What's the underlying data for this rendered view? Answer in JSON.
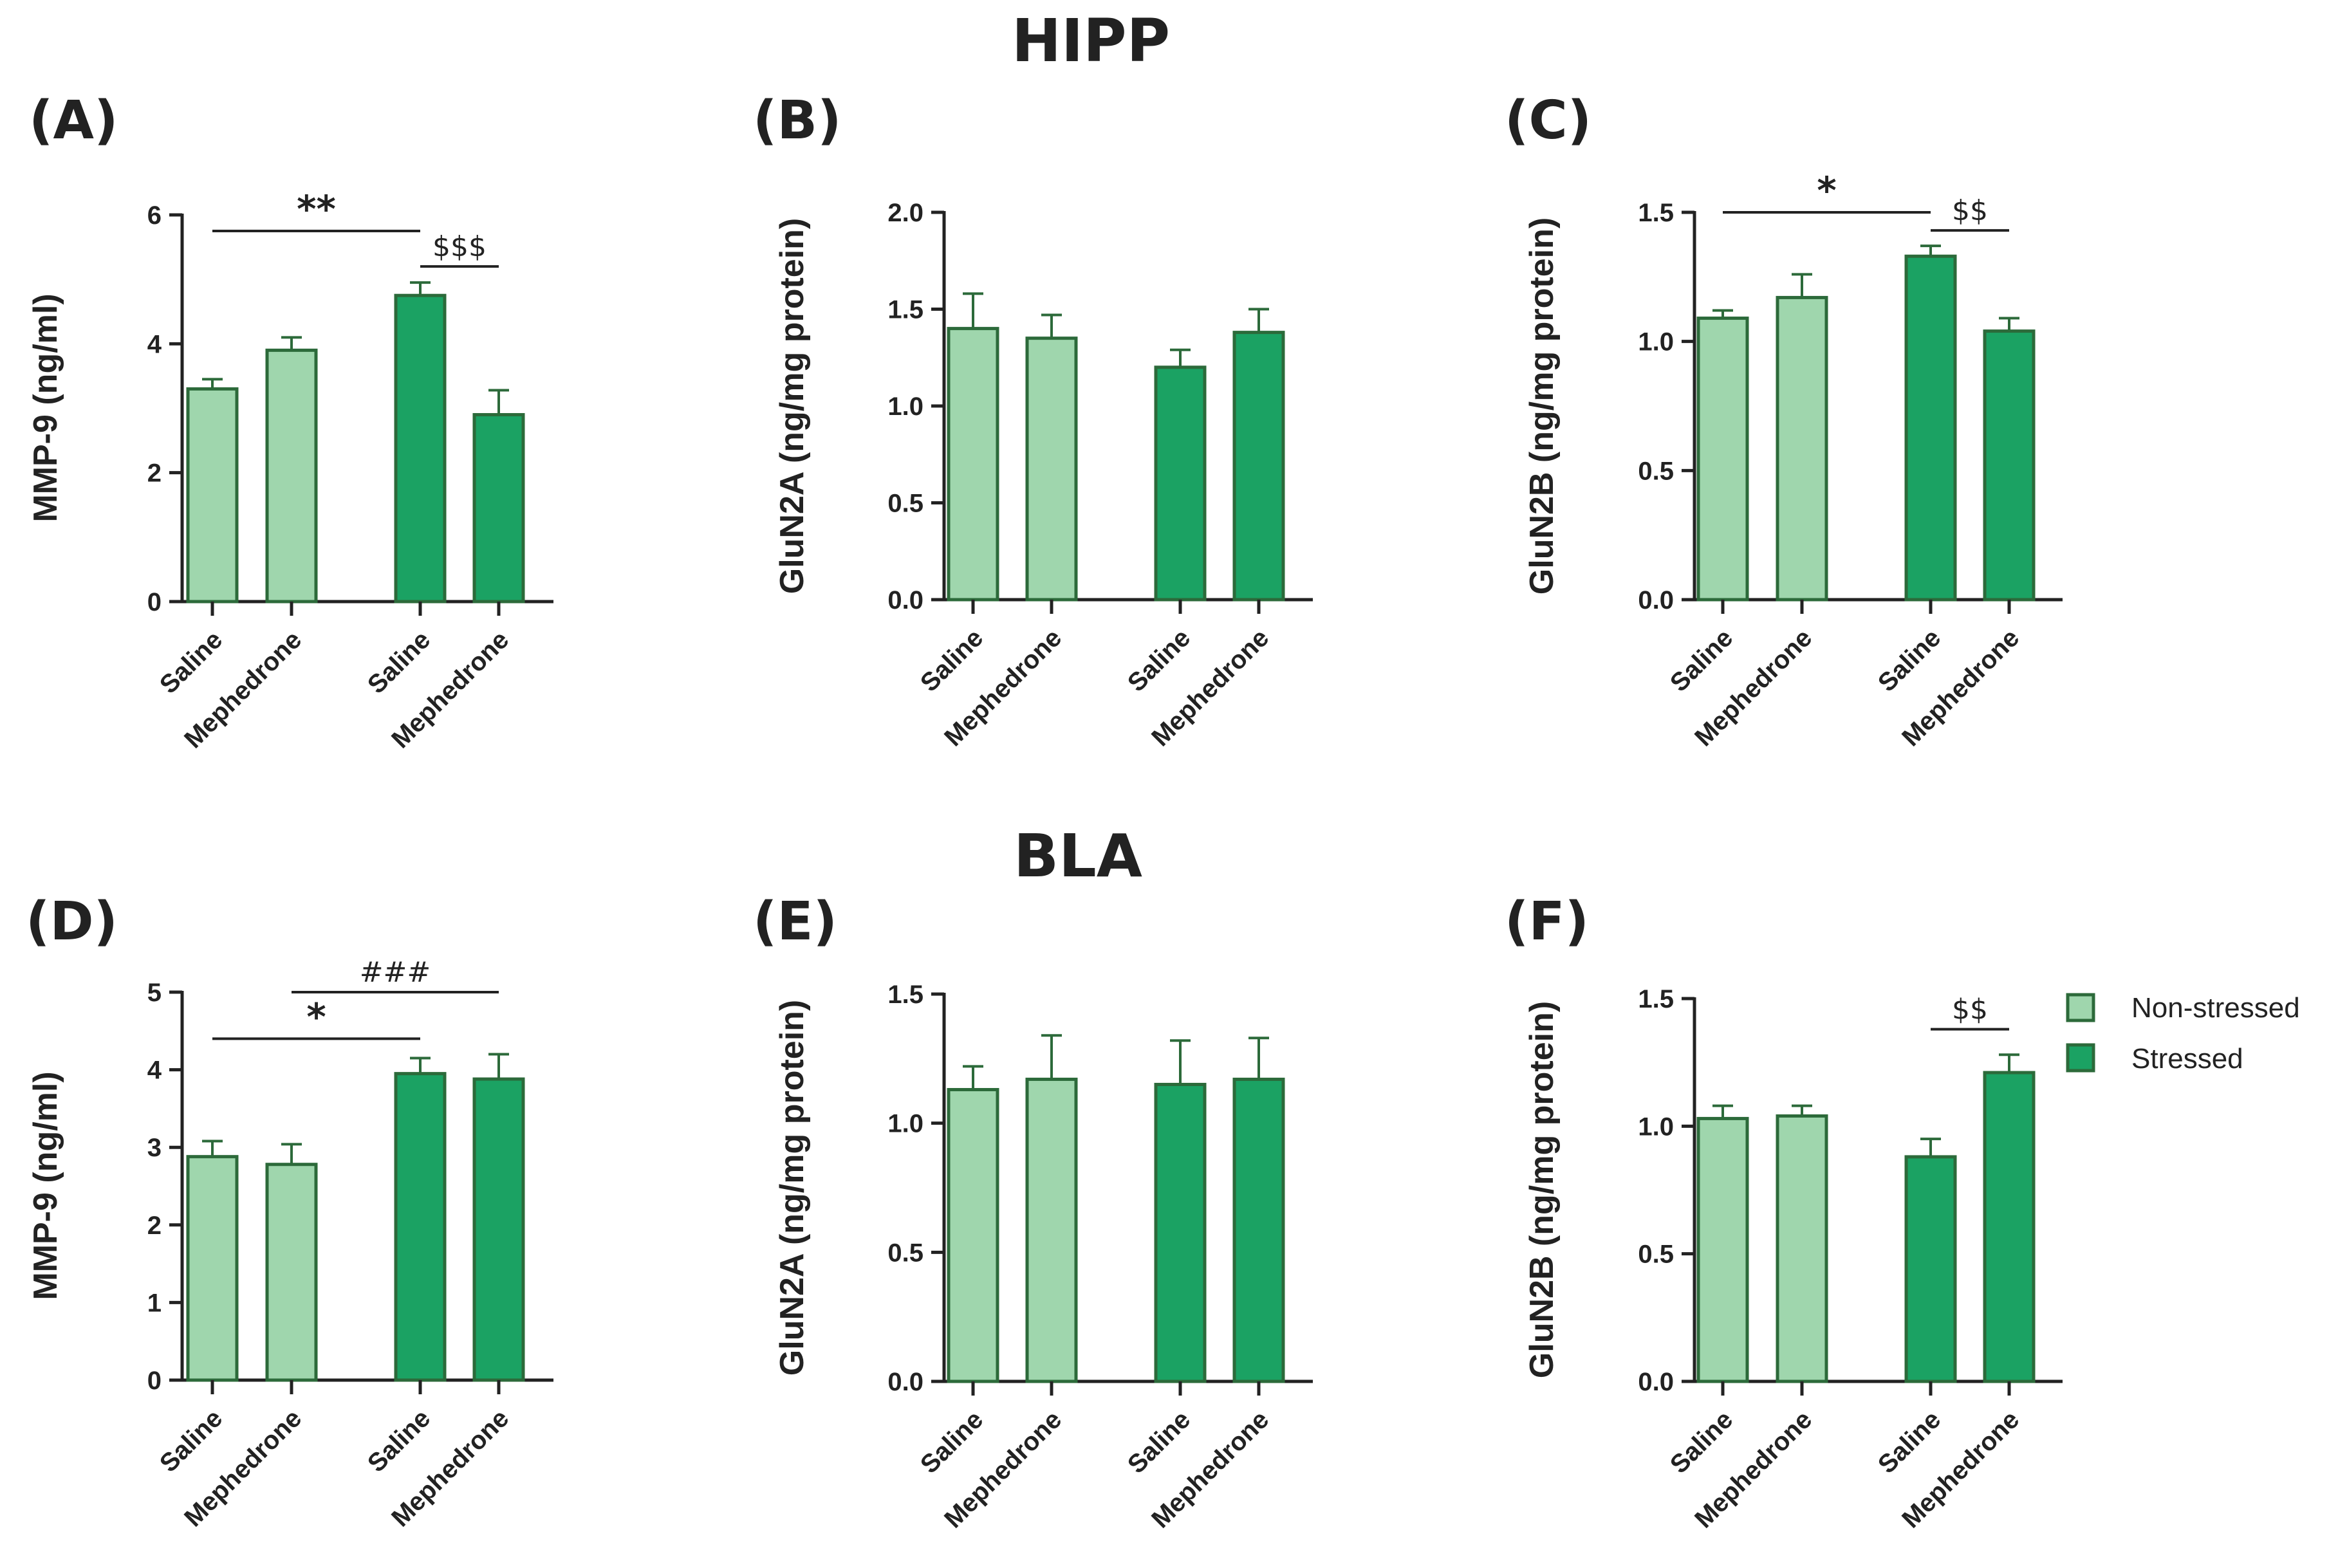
{
  "titles": {
    "hipp": "HIPP",
    "bla": "BLA"
  },
  "legend": {
    "items": [
      {
        "label": "Non-stressed",
        "color": "#9fd6ad"
      },
      {
        "label": "Stressed",
        "color": "#1ba263"
      }
    ]
  },
  "colors": {
    "edge": "#2c6a3a",
    "nonstressed": "#9fd6ad",
    "stressed": "#1ba263",
    "axis": "#222222"
  },
  "chart_data": [
    {
      "label": "(A)",
      "type": "bar",
      "ylabel": "MMP-9 (ng/ml)",
      "ylim": [
        0,
        6
      ],
      "yticks": [
        0,
        2,
        4,
        6
      ],
      "ytick_labels": [
        "0",
        "2",
        "4",
        "6"
      ],
      "categories": [
        "Saline",
        "Mephedrone",
        "Saline",
        "Mephedrone"
      ],
      "groups": [
        "Non-stressed",
        "Non-stressed",
        "Stressed",
        "Stressed"
      ],
      "values": [
        3.3,
        3.9,
        4.75,
        2.9
      ],
      "errors": [
        0.15,
        0.2,
        0.2,
        0.38
      ],
      "significance": [
        {
          "from": 0,
          "to": 2,
          "text": "**",
          "y": 5.75,
          "style": "star"
        },
        {
          "from": 2,
          "to": 3,
          "text": "$$$",
          "y": 5.2,
          "style": "symbol"
        }
      ]
    },
    {
      "label": "(B)",
      "type": "bar",
      "ylabel": "GluN2A (ng/mg protein)",
      "ylim": [
        0,
        2
      ],
      "yticks": [
        0,
        0.5,
        1,
        1.5,
        2
      ],
      "ytick_labels": [
        "0.0",
        "0.5",
        "1.0",
        "1.5",
        "2.0"
      ],
      "categories": [
        "Saline",
        "Mephedrone",
        "Saline",
        "Mephedrone"
      ],
      "groups": [
        "Non-stressed",
        "Non-stressed",
        "Stressed",
        "Stressed"
      ],
      "values": [
        1.4,
        1.35,
        1.2,
        1.38
      ],
      "errors": [
        0.18,
        0.12,
        0.09,
        0.12
      ],
      "significance": []
    },
    {
      "label": "(C)",
      "type": "bar",
      "ylabel": "GluN2B (ng/mg protein)",
      "ylim": [
        0,
        1.5
      ],
      "yticks": [
        0,
        0.5,
        1,
        1.5
      ],
      "ytick_labels": [
        "0.0",
        "0.5",
        "1.0",
        "1.5"
      ],
      "categories": [
        "Saline",
        "Mephedrone",
        "Saline",
        "Mephedrone"
      ],
      "groups": [
        "Non-stressed",
        "Non-stressed",
        "Stressed",
        "Stressed"
      ],
      "values": [
        1.09,
        1.17,
        1.33,
        1.04
      ],
      "errors": [
        0.03,
        0.09,
        0.04,
        0.05
      ],
      "significance": [
        {
          "from": 0,
          "to": 2,
          "text": "*",
          "y": 1.5,
          "style": "star"
        },
        {
          "from": 2,
          "to": 3,
          "text": "$$",
          "y": 1.43,
          "style": "symbol"
        }
      ]
    },
    {
      "label": "(D)",
      "type": "bar",
      "ylabel": "MMP-9 (ng/ml)",
      "ylim": [
        0,
        5
      ],
      "yticks": [
        0,
        1,
        2,
        3,
        4,
        5
      ],
      "ytick_labels": [
        "0",
        "1",
        "2",
        "3",
        "4",
        "5"
      ],
      "categories": [
        "Saline",
        "Mephedrone",
        "Saline",
        "Mephedrone"
      ],
      "groups": [
        "Non-stressed",
        "Non-stressed",
        "Stressed",
        "Stressed"
      ],
      "values": [
        2.88,
        2.78,
        3.95,
        3.88
      ],
      "errors": [
        0.2,
        0.26,
        0.2,
        0.32
      ],
      "significance": [
        {
          "from": 0,
          "to": 2,
          "text": "*",
          "y": 4.4,
          "style": "star"
        },
        {
          "from": 1,
          "to": 3,
          "text": "###",
          "y": 5.0,
          "style": "symbol"
        }
      ]
    },
    {
      "label": "(E)",
      "type": "bar",
      "ylabel": "GluN2A (ng/mg protein)",
      "ylim": [
        0,
        1.5
      ],
      "yticks": [
        0,
        0.5,
        1,
        1.5
      ],
      "ytick_labels": [
        "0.0",
        "0.5",
        "1.0",
        "1.5"
      ],
      "categories": [
        "Saline",
        "Mephedrone",
        "Saline",
        "Mephedrone"
      ],
      "groups": [
        "Non-stressed",
        "Non-stressed",
        "Stressed",
        "Stressed"
      ],
      "values": [
        1.13,
        1.17,
        1.15,
        1.17
      ],
      "errors": [
        0.09,
        0.17,
        0.17,
        0.16
      ],
      "significance": []
    },
    {
      "label": "(F)",
      "type": "bar",
      "ylabel": "GluN2B (ng/mg protein)",
      "ylim": [
        0,
        1.5
      ],
      "yticks": [
        0,
        0.5,
        1,
        1.5
      ],
      "ytick_labels": [
        "0.0",
        "0.5",
        "1.0",
        "1.5"
      ],
      "categories": [
        "Saline",
        "Mephedrone",
        "Saline",
        "Mephedrone"
      ],
      "groups": [
        "Non-stressed",
        "Non-stressed",
        "Stressed",
        "Stressed"
      ],
      "values": [
        1.03,
        1.04,
        0.88,
        1.21
      ],
      "errors": [
        0.05,
        0.04,
        0.07,
        0.07
      ],
      "significance": [
        {
          "from": 2,
          "to": 3,
          "text": "$$",
          "y": 1.38,
          "style": "symbol"
        }
      ]
    }
  ]
}
